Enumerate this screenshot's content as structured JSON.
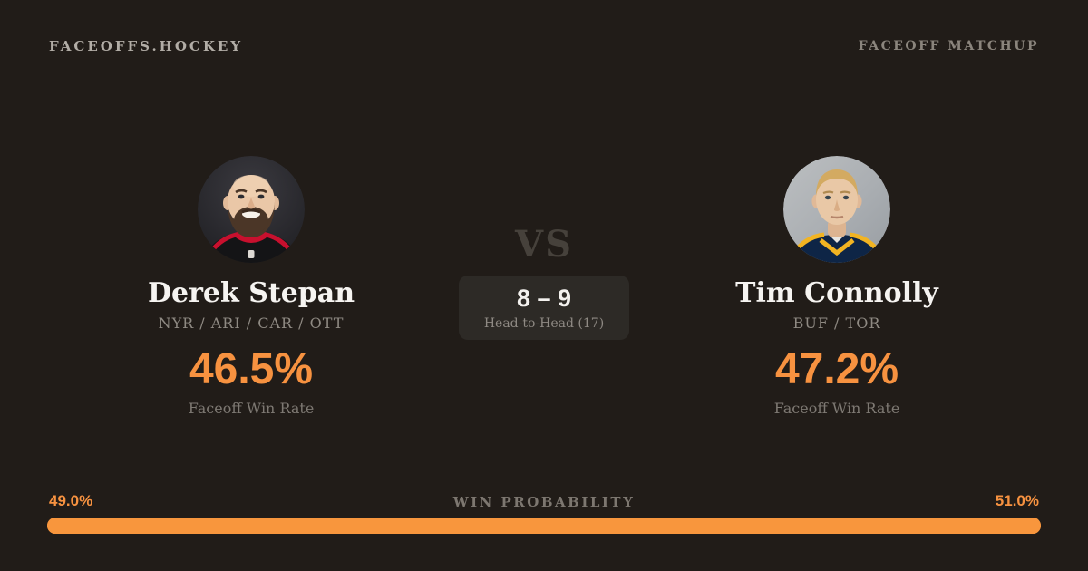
{
  "colors": {
    "background": "#211c18",
    "accent_orange": "#f79240",
    "bar_orange": "#f8963d",
    "box_background": "#2d2a26"
  },
  "header": {
    "brand": "FACEOFFS.HOCKEY",
    "page_label": "FACEOFF MATCHUP"
  },
  "players": {
    "left": {
      "name": "Derek Stepan",
      "teams": "NYR / ARI / CAR / OTT",
      "faceoff_win_rate": "46.5%",
      "rate_label": "Faceoff Win Rate",
      "avatar_icon": "bearded-player-headshot-icon"
    },
    "right": {
      "name": "Tim Connolly",
      "teams": "BUF / TOR",
      "faceoff_win_rate": "47.2%",
      "rate_label": "Faceoff Win Rate",
      "avatar_icon": "blond-player-headshot-icon"
    }
  },
  "matchup": {
    "vs_label": "VS",
    "head_to_head": {
      "score": "8 – 9",
      "label": "Head-to-Head (17)"
    }
  },
  "win_probability": {
    "label": "WIN PROBABILITY",
    "left_value": "49.0%",
    "right_value": "51.0%",
    "left_pct": 49.0,
    "right_pct": 51.0
  }
}
